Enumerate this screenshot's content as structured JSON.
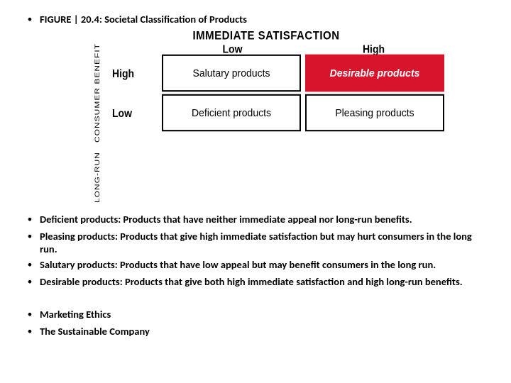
{
  "title_bullet": "FIGURE | 20.4: Societal Classification of Products",
  "figure": {
    "top_axis_label": "IMMEDIATE SATISFACTION",
    "side_axis_line1": "LONG-RUN",
    "side_axis_line2": "CONSUMER BENEFIT",
    "col_labels": [
      "Low",
      "High"
    ],
    "row_labels": [
      "High",
      "Low"
    ],
    "cells": [
      [
        {
          "text": "Salutary products",
          "accent": false
        },
        {
          "text": "Desirable products",
          "accent": true
        }
      ],
      [
        {
          "text": "Deficient products",
          "accent": false
        },
        {
          "text": "Pleasing products",
          "accent": false
        }
      ]
    ],
    "accent_bg": "#d8142c",
    "accent_border": "#d8142c",
    "accent_text": "#ffffff",
    "plain_border": "#000000",
    "plain_bg": "#ffffff"
  },
  "definitions": [
    "Deficient products: Products that have neither immediate appeal nor long-run benefits.",
    "Pleasing products: Products that give high immediate satisfaction but may hurt consumers in the long run.",
    "Salutary products: Products that have low appeal but may benefit consumers in the long run.",
    "Desirable products: Products that give both high immediate satisfaction and high long-run benefits."
  ],
  "footer_bullets": [
    "Marketing Ethics",
    "The Sustainable Company"
  ]
}
